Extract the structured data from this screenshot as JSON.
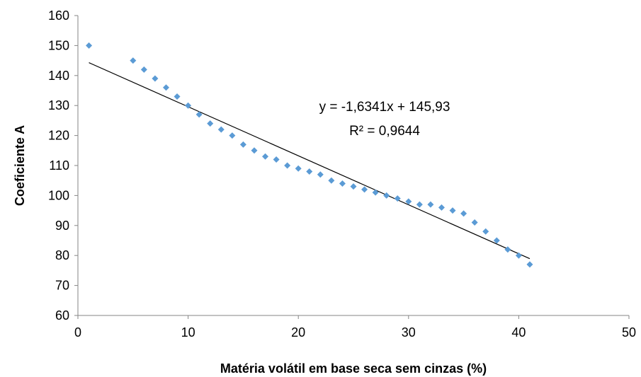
{
  "chart_data": {
    "type": "scatter",
    "title": "",
    "xlabel": "Matéria volátil em base seca sem cinzas (%)",
    "ylabel": "Coeficiente A",
    "xlim": [
      0,
      50
    ],
    "ylim": [
      60,
      160
    ],
    "x_ticks": [
      0,
      10,
      20,
      30,
      40,
      50
    ],
    "y_ticks": [
      60,
      70,
      80,
      90,
      100,
      110,
      120,
      130,
      140,
      150,
      160
    ],
    "grid": false,
    "legend": "none",
    "marker_color": "#5B9BD5",
    "trendline_color": "#000000",
    "series": [
      {
        "x": [
          1,
          5,
          6,
          7,
          8,
          9,
          10,
          11,
          12,
          13,
          14,
          15,
          16,
          17,
          18,
          19,
          20,
          21,
          22,
          23,
          24,
          25,
          26,
          27,
          28,
          29,
          30,
          31,
          32,
          33,
          34,
          35,
          36,
          37,
          38,
          39,
          40,
          41
        ],
        "y": [
          150,
          145,
          142,
          139,
          136,
          133,
          130,
          127,
          124,
          122,
          120,
          117,
          115,
          113,
          112,
          110,
          109,
          108,
          107,
          105,
          104,
          103,
          102,
          101,
          100,
          99,
          98,
          97,
          97,
          96,
          95,
          94,
          91,
          88,
          85,
          82,
          80,
          77
        ]
      }
    ],
    "trendline": {
      "type": "linear",
      "slope": -1.6341,
      "intercept": 145.93,
      "x_range": [
        1,
        41
      ]
    },
    "annotations": {
      "equation": "y = -1,6341x + 145,93",
      "r_squared": "R² = 0,9644"
    }
  }
}
